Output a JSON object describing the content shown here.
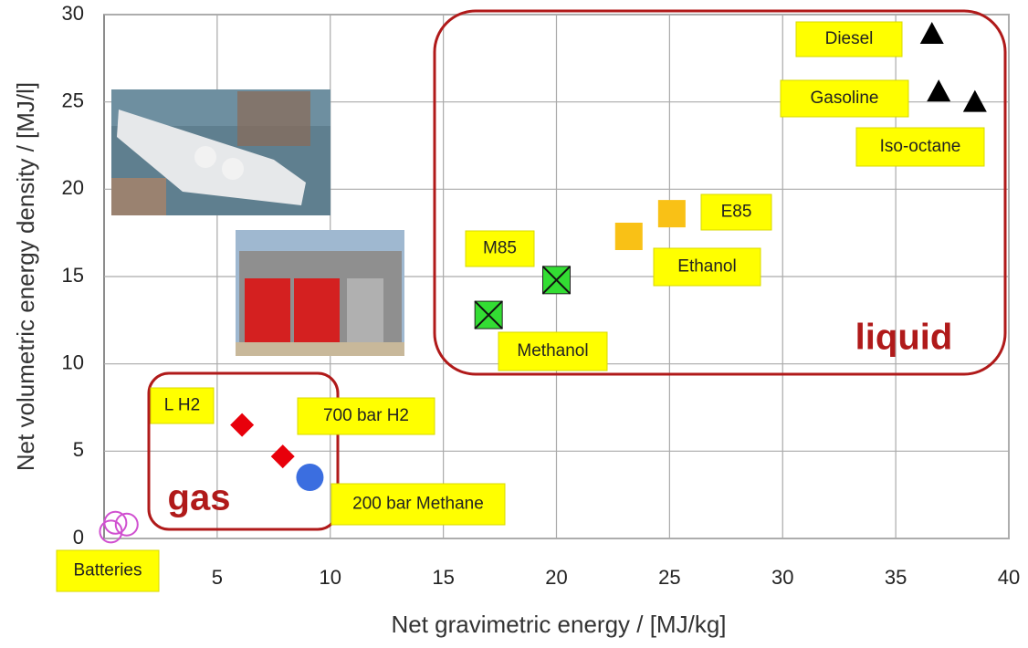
{
  "chart_data": {
    "type": "scatter",
    "x_label": "Net gravimetric energy / [MJ/kg]",
    "y_label": "Net volumetric energy density / [MJ/l]",
    "xlim": [
      0,
      40
    ],
    "ylim": [
      0,
      30
    ],
    "xticks": [
      5,
      10,
      15,
      20,
      25,
      30,
      35,
      40
    ],
    "yticks": [
      0,
      5,
      10,
      15,
      20,
      25,
      30
    ],
    "grid": true,
    "regions": [
      "gas",
      "liquid"
    ],
    "series": [
      {
        "name": "Diesel",
        "color": "#000000",
        "marker": "triangle",
        "x": [
          36.6
        ],
        "y": [
          28.9
        ]
      },
      {
        "name": "Gasoline",
        "color": "#000000",
        "marker": "triangle",
        "x": [
          36.9
        ],
        "y": [
          25.6
        ]
      },
      {
        "name": "Iso-octane",
        "color": "#000000",
        "marker": "triangle",
        "x": [
          38.5
        ],
        "y": [
          25.0
        ]
      },
      {
        "name": "E85",
        "color": "#f9c116",
        "marker": "square",
        "x": [
          25.1
        ],
        "y": [
          18.6
        ]
      },
      {
        "name": "Ethanol",
        "color": "#f9c116",
        "marker": "square",
        "x": [
          23.2
        ],
        "y": [
          17.3
        ]
      },
      {
        "name": "M85",
        "color": "#33dd33",
        "marker": "x-square",
        "x": [
          20.0
        ],
        "y": [
          14.8
        ]
      },
      {
        "name": "Methanol",
        "color": "#33dd33",
        "marker": "x-square",
        "x": [
          17.0
        ],
        "y": [
          12.8
        ]
      },
      {
        "name": "L H2",
        "color": "#e8000b",
        "marker": "diamond",
        "x": [
          6.1
        ],
        "y": [
          6.5
        ]
      },
      {
        "name": "700 bar H2",
        "color": "#e8000b",
        "marker": "diamond",
        "x": [
          7.9
        ],
        "y": [
          4.7
        ]
      },
      {
        "name": "200 bar Methane",
        "color": "#3b6ee0",
        "marker": "circle",
        "x": [
          9.1
        ],
        "y": [
          3.5
        ]
      },
      {
        "name": "Batteries",
        "color": "#d050d0",
        "marker": "open-circle",
        "x": [
          0.3,
          0.5,
          1.0
        ],
        "y": [
          0.4,
          0.9,
          0.8
        ]
      }
    ]
  }
}
